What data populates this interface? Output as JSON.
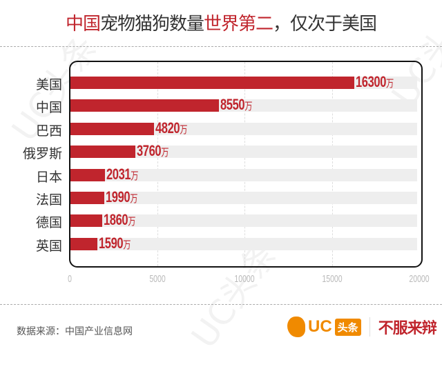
{
  "title": {
    "part1": "中国",
    "part2": "宠物猫狗数量",
    "part3": "世界第二",
    "part4": "，仅次于美国"
  },
  "chart_data": {
    "type": "bar",
    "orientation": "horizontal",
    "title": "中国宠物猫狗数量世界第二，仅次于美国",
    "categories": [
      "美国",
      "中国",
      "巴西",
      "俄罗斯",
      "日本",
      "法国",
      "德国",
      "英国"
    ],
    "values": [
      16300,
      8550,
      4820,
      3760,
      2031,
      1990,
      1860,
      1590
    ],
    "unit": "万",
    "xlim": [
      0,
      20000
    ],
    "xticks": [
      "0",
      "5000",
      "10000",
      "15000",
      "20000"
    ],
    "grid": true
  },
  "footer": {
    "source": "数据来源：中国产业信息网",
    "logo_uc": "UC",
    "logo_tt": "头条",
    "slogan": "不服来辩"
  },
  "watermark": "UC头条",
  "colors": {
    "accent": "#c0252d",
    "brand": "#f08a00"
  }
}
